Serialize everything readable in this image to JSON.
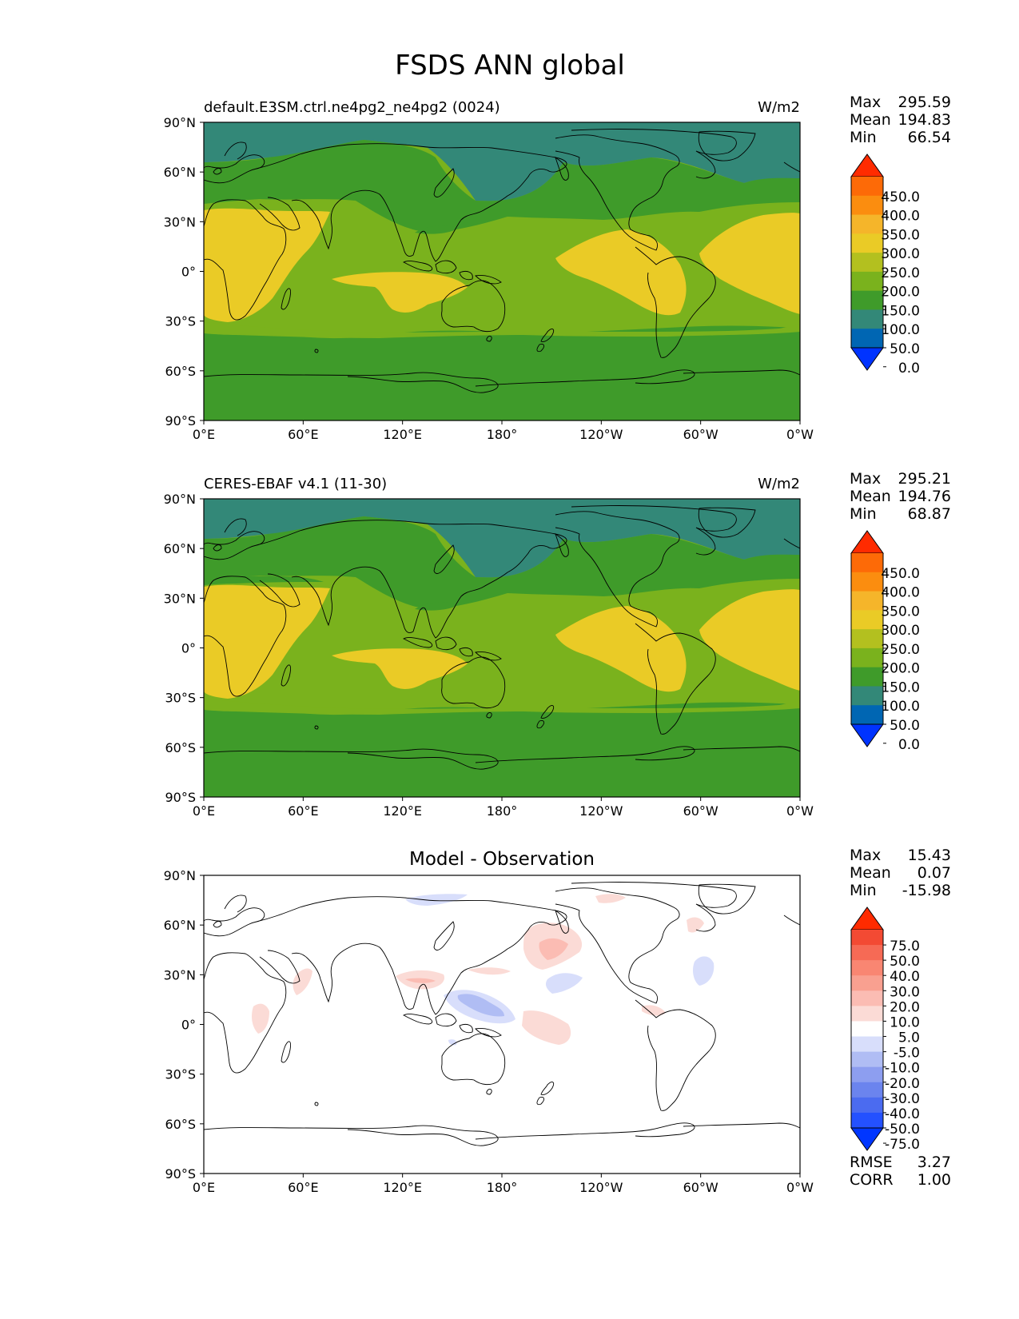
{
  "figure": {
    "title": "FSDS ANN global"
  },
  "axis_ticks": {
    "lat": [
      "90°N",
      "60°N",
      "30°N",
      "0°",
      "30°S",
      "60°S",
      "90°S"
    ],
    "lon": [
      "0°E",
      "60°E",
      "120°E",
      "180°",
      "120°W",
      "60°W",
      "0°W"
    ]
  },
  "colors": {
    "field_levels": [
      "#0033ff",
      "#0066b3",
      "#338878",
      "#3f9b2a",
      "#7ab21d",
      "#b3c01f",
      "#eacb26",
      "#f5b52a",
      "#fb8d0f",
      "#fd6a07",
      "#ff2b00"
    ],
    "diff_levels": [
      "#0036ff",
      "#2451ff",
      "#4b6bf0",
      "#6b84ee",
      "#8d9ef0",
      "#b0bdf4",
      "#d8defb",
      "#ffffff",
      "#fbdbd6",
      "#fbbcb3",
      "#f9a090",
      "#f98672",
      "#f66a55",
      "#f34a33",
      "#ff2b00"
    ],
    "coastline": "#000000"
  },
  "panels": [
    {
      "id": "test",
      "left_title": "default.E3SM.ctrl.ne4pg2_ne4pg2 (0024)",
      "center_title": "",
      "units": "W/m2",
      "stats": [
        {
          "label": "Max",
          "value": "295.59"
        },
        {
          "label": "Mean",
          "value": "194.83"
        },
        {
          "label": "Min",
          "value": "66.54"
        }
      ],
      "colorbar": {
        "labels": [
          "450.0",
          "400.0",
          "350.0",
          "300.0",
          "250.0",
          "200.0",
          "150.0",
          "100.0",
          "50.0",
          "0.0"
        ]
      }
    },
    {
      "id": "reference",
      "left_title": "CERES-EBAF v4.1 (11-30)",
      "center_title": "",
      "units": "W/m2",
      "stats": [
        {
          "label": "Max",
          "value": "295.21"
        },
        {
          "label": "Mean",
          "value": "194.76"
        },
        {
          "label": "Min",
          "value": "68.87"
        }
      ],
      "colorbar": {
        "labels": [
          "450.0",
          "400.0",
          "350.0",
          "300.0",
          "250.0",
          "200.0",
          "150.0",
          "100.0",
          "50.0",
          "0.0"
        ]
      }
    },
    {
      "id": "difference",
      "left_title": "",
      "center_title": "Model - Observation",
      "units": "",
      "stats": [
        {
          "label": "Max",
          "value": "15.43"
        },
        {
          "label": "Mean",
          "value": "0.07"
        },
        {
          "label": "Min",
          "value": "-15.98"
        }
      ],
      "colorbar": {
        "labels": [
          "75.0",
          "50.0",
          "40.0",
          "30.0",
          "20.0",
          "10.0",
          "5.0",
          "-5.0",
          "-10.0",
          "-20.0",
          "-30.0",
          "-40.0",
          "-50.0",
          "-75.0"
        ]
      },
      "error_stats": [
        {
          "label": "RMSE",
          "value": "3.27"
        },
        {
          "label": "CORR",
          "value": "1.00"
        }
      ]
    }
  ]
}
